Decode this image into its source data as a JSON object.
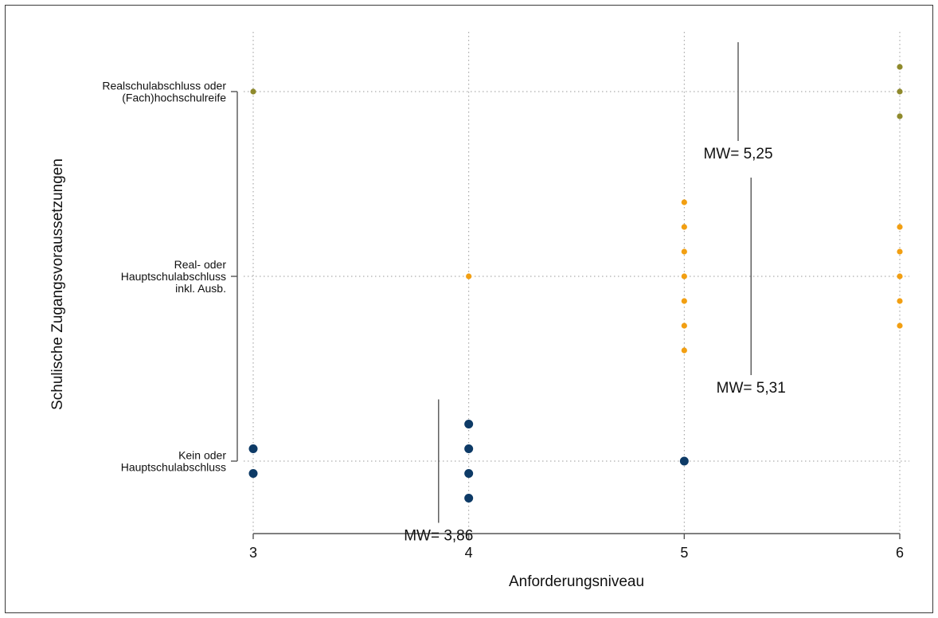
{
  "chart_data": {
    "type": "scatter",
    "xlabel": "Anforderungsniveau",
    "ylabel": "Schulische Zugangsvoraussetzungen",
    "x_ticks": [
      3,
      4,
      5,
      6
    ],
    "xlim": [
      3,
      6
    ],
    "categories": [
      {
        "key": "cat1",
        "lines": [
          "Kein oder",
          "Hauptschulabschluss"
        ]
      },
      {
        "key": "cat2",
        "lines": [
          "Real- oder",
          "Hauptschulabschluss",
          "inkl. Ausb."
        ]
      },
      {
        "key": "cat3",
        "lines": [
          "Realschulabschluss oder",
          "(Fach)hochschulreife"
        ]
      }
    ],
    "grid": "dotted",
    "series": [
      {
        "category": "cat1",
        "color": "#0d3a66",
        "size": "large",
        "counts": [
          {
            "x": 3,
            "n": 2
          },
          {
            "x": 4,
            "n": 4
          },
          {
            "x": 5,
            "n": 1
          }
        ],
        "mean_label": "MW= 3,86",
        "mean": 3.86
      },
      {
        "category": "cat2",
        "color": "#f29f12",
        "size": "small",
        "counts": [
          {
            "x": 4,
            "n": 1
          },
          {
            "x": 5,
            "n": 7
          },
          {
            "x": 6,
            "n": 5
          }
        ],
        "mean_label": "MW= 5,31",
        "mean": 5.31
      },
      {
        "category": "cat3",
        "color": "#8f8a2c",
        "size": "small",
        "counts": [
          {
            "x": 3,
            "n": 1
          },
          {
            "x": 6,
            "n": 3
          }
        ],
        "mean_label": "MW= 5,25",
        "mean": 5.25
      }
    ]
  }
}
